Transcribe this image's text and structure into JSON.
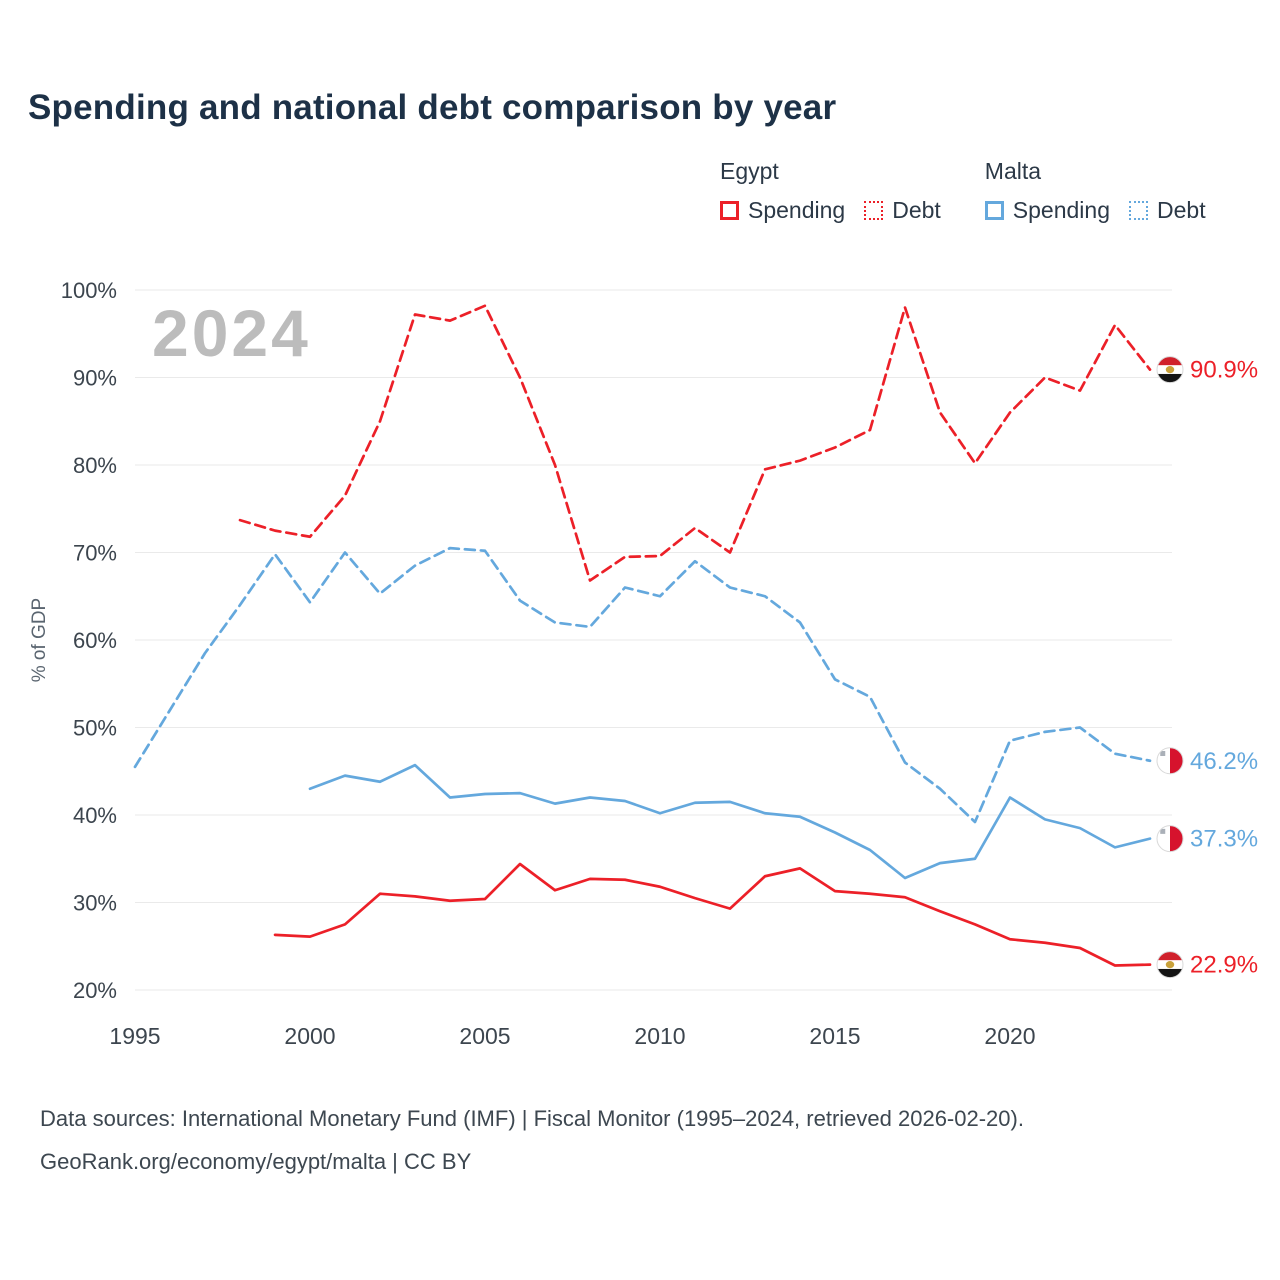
{
  "title": "Spending and national debt comparison by year",
  "watermark": "2024",
  "y_axis_label": "% of GDP",
  "legend": {
    "groups": [
      {
        "country": "Egypt",
        "color": "#ec2028",
        "items": [
          {
            "label": "Spending",
            "style": "solid"
          },
          {
            "label": "Debt",
            "style": "dotted"
          }
        ]
      },
      {
        "country": "Malta",
        "color": "#64a8dd",
        "items": [
          {
            "label": "Spending",
            "style": "solid"
          },
          {
            "label": "Debt",
            "style": "dotted"
          }
        ]
      }
    ]
  },
  "footer": {
    "line1": "Data sources: International Monetary Fund (IMF) | Fiscal Monitor (1995–2024, retrieved 2026-02-20).",
    "line2": "GeoRank.org/economy/egypt/malta | CC BY"
  },
  "chart_data": {
    "type": "line",
    "title": "Spending and national debt comparison by year",
    "xlabel": "",
    "ylabel": "% of GDP",
    "xlim": [
      1995,
      2024
    ],
    "ylim": [
      20,
      100
    ],
    "grid": true,
    "legend_position": "top-right",
    "x_ticks": [
      1995,
      2000,
      2005,
      2010,
      2015,
      2020
    ],
    "y_ticks": [
      20,
      30,
      40,
      50,
      60,
      70,
      80,
      90,
      100
    ],
    "series": [
      {
        "id": "egypt-debt",
        "name": "Egypt Debt",
        "flag": "egypt",
        "color": "#ec2028",
        "dash": true,
        "end_label": "90.9%",
        "years": [
          1998,
          1999,
          2000,
          2001,
          2002,
          2003,
          2004,
          2005,
          2006,
          2007,
          2008,
          2009,
          2010,
          2011,
          2012,
          2013,
          2014,
          2015,
          2016,
          2017,
          2018,
          2019,
          2020,
          2021,
          2022,
          2023,
          2024
        ],
        "values": [
          73.7,
          72.5,
          71.8,
          76.5,
          85.0,
          97.2,
          96.5,
          98.2,
          90.0,
          80.0,
          66.8,
          69.5,
          69.6,
          72.8,
          70.0,
          79.5,
          80.5,
          82.0,
          84.0,
          98.0,
          86.0,
          80.2,
          86.0,
          90.0,
          88.5,
          96.0,
          90.9
        ]
      },
      {
        "id": "malta-debt",
        "name": "Malta Debt",
        "flag": "malta",
        "color": "#64a8dd",
        "dash": true,
        "end_label": "46.2%",
        "years": [
          1995,
          1996,
          1997,
          1998,
          1999,
          2000,
          2001,
          2002,
          2003,
          2004,
          2005,
          2006,
          2007,
          2008,
          2009,
          2010,
          2011,
          2012,
          2013,
          2014,
          2015,
          2016,
          2017,
          2018,
          2019,
          2020,
          2021,
          2022,
          2023,
          2024
        ],
        "values": [
          45.5,
          52.0,
          58.5,
          64.0,
          69.8,
          64.3,
          70.0,
          65.3,
          68.5,
          70.5,
          70.2,
          64.5,
          62.0,
          61.5,
          66.0,
          65.0,
          69.0,
          66.0,
          65.0,
          62.0,
          55.5,
          53.5,
          46.0,
          43.0,
          39.2,
          48.5,
          49.5,
          50.0,
          47.0,
          46.2
        ]
      },
      {
        "id": "malta-spending",
        "name": "Malta Spending",
        "flag": "malta",
        "color": "#64a8dd",
        "dash": false,
        "end_label": "37.3%",
        "years": [
          2000,
          2001,
          2002,
          2003,
          2004,
          2005,
          2006,
          2007,
          2008,
          2009,
          2010,
          2011,
          2012,
          2013,
          2014,
          2015,
          2016,
          2017,
          2018,
          2019,
          2020,
          2021,
          2022,
          2023,
          2024
        ],
        "values": [
          43.0,
          44.5,
          43.8,
          45.7,
          42.0,
          42.4,
          42.5,
          41.3,
          42.0,
          41.6,
          40.2,
          41.4,
          41.5,
          40.2,
          39.8,
          38.0,
          36.0,
          32.8,
          34.5,
          35.0,
          42.0,
          39.5,
          38.5,
          36.3,
          37.3
        ]
      },
      {
        "id": "egypt-spending",
        "name": "Egypt Spending",
        "flag": "egypt",
        "color": "#ec2028",
        "dash": false,
        "end_label": "22.9%",
        "years": [
          1999,
          2000,
          2001,
          2002,
          2003,
          2004,
          2005,
          2006,
          2007,
          2008,
          2009,
          2010,
          2011,
          2012,
          2013,
          2014,
          2015,
          2016,
          2017,
          2018,
          2019,
          2020,
          2021,
          2022,
          2023,
          2024
        ],
        "values": [
          26.3,
          26.1,
          27.5,
          31.0,
          30.7,
          30.2,
          30.4,
          34.4,
          31.4,
          32.7,
          32.6,
          31.8,
          30.5,
          29.3,
          33.0,
          33.9,
          31.3,
          31.0,
          30.6,
          29.0,
          27.5,
          25.8,
          25.4,
          24.8,
          22.8,
          22.9
        ]
      }
    ],
    "end_labels": {
      "egypt_debt": "90.9%",
      "malta_debt": "46.2%",
      "malta_spending": "37.3%",
      "egypt_spending": "22.9%"
    },
    "flag_colors": {
      "egypt_red": "#d0202b",
      "egypt_white": "#ffffff",
      "egypt_black": "#141414",
      "egypt_emblem_gold": "#c9a13b",
      "malta_white": "#ffffff",
      "malta_red": "#d6132d"
    }
  }
}
